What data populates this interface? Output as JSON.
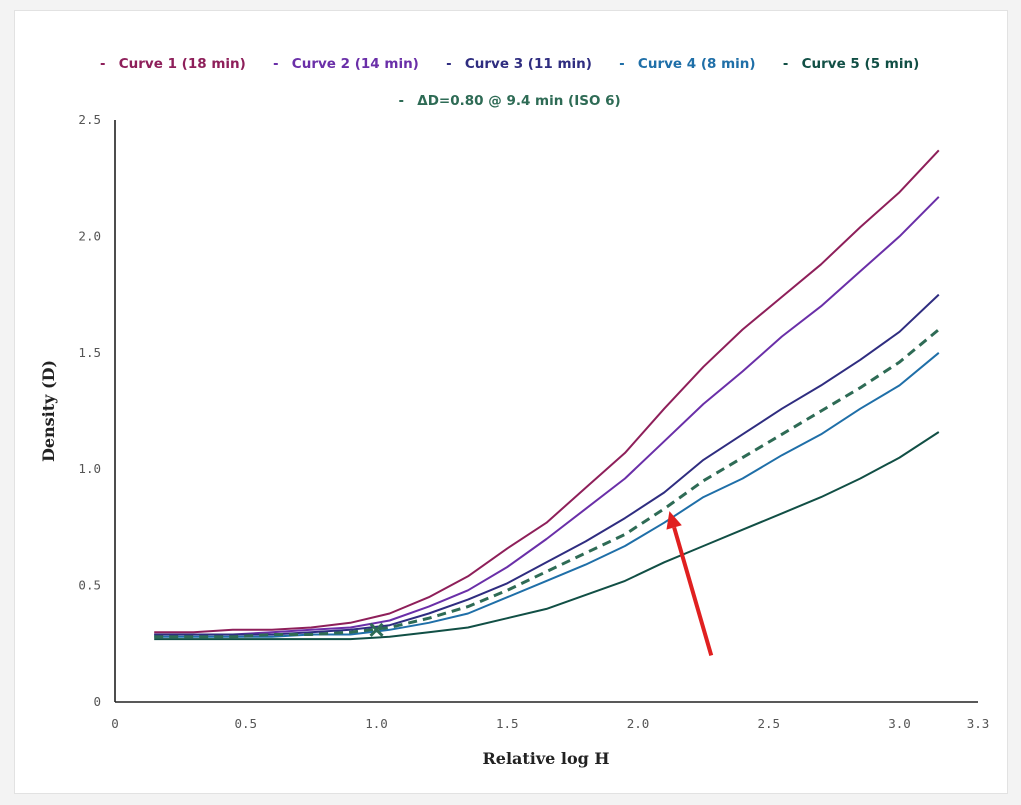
{
  "chart_data": {
    "type": "line",
    "title": "",
    "xlabel": "Relative log H",
    "ylabel": "Density (D)",
    "xlim": [
      0,
      3.3
    ],
    "ylim": [
      0,
      2.5
    ],
    "xticks": [
      "0",
      "0.5",
      "1.0",
      "1.5",
      "2.0",
      "2.5",
      "3.0",
      "3.3"
    ],
    "yticks": [
      "0",
      "0.5",
      "1.0",
      "1.5",
      "2.0",
      "2.5"
    ],
    "grid": false,
    "legend_position": "top",
    "series": [
      {
        "name": "Curve 1 (18 min)",
        "color": "#8e1f5a",
        "dash": false,
        "x": [
          0.15,
          0.3,
          0.45,
          0.6,
          0.75,
          0.9,
          1.05,
          1.2,
          1.35,
          1.5,
          1.65,
          1.8,
          1.95,
          2.1,
          2.25,
          2.4,
          2.55,
          2.7,
          2.85,
          3.0,
          3.15
        ],
        "y": [
          0.3,
          0.3,
          0.31,
          0.31,
          0.32,
          0.34,
          0.38,
          0.45,
          0.54,
          0.66,
          0.77,
          0.92,
          1.07,
          1.26,
          1.44,
          1.6,
          1.74,
          1.88,
          2.04,
          2.19,
          2.37
        ]
      },
      {
        "name": "Curve 2 (14 min)",
        "color": "#6a2fa8",
        "dash": false,
        "x": [
          0.15,
          0.3,
          0.45,
          0.6,
          0.75,
          0.9,
          1.05,
          1.2,
          1.35,
          1.5,
          1.65,
          1.8,
          1.95,
          2.1,
          2.25,
          2.4,
          2.55,
          2.7,
          2.85,
          3.0,
          3.15
        ],
        "y": [
          0.29,
          0.29,
          0.29,
          0.3,
          0.31,
          0.32,
          0.35,
          0.41,
          0.48,
          0.58,
          0.7,
          0.83,
          0.96,
          1.12,
          1.28,
          1.42,
          1.57,
          1.7,
          1.85,
          2.0,
          2.17
        ]
      },
      {
        "name": "Curve 3 (11 min)",
        "color": "#2f2d80",
        "dash": false,
        "x": [
          0.15,
          0.3,
          0.45,
          0.6,
          0.75,
          0.9,
          1.05,
          1.2,
          1.35,
          1.5,
          1.65,
          1.8,
          1.95,
          2.1,
          2.25,
          2.4,
          2.55,
          2.7,
          2.85,
          3.0,
          3.15
        ],
        "y": [
          0.29,
          0.29,
          0.29,
          0.29,
          0.3,
          0.31,
          0.33,
          0.38,
          0.44,
          0.51,
          0.6,
          0.69,
          0.79,
          0.9,
          1.04,
          1.15,
          1.26,
          1.36,
          1.47,
          1.59,
          1.75
        ]
      },
      {
        "name": "Curve 4 (8 min)",
        "color": "#1f6fa8",
        "dash": false,
        "x": [
          0.15,
          0.3,
          0.45,
          0.6,
          0.75,
          0.9,
          1.05,
          1.2,
          1.35,
          1.5,
          1.65,
          1.8,
          1.95,
          2.1,
          2.25,
          2.4,
          2.55,
          2.7,
          2.85,
          3.0,
          3.15
        ],
        "y": [
          0.28,
          0.28,
          0.28,
          0.28,
          0.29,
          0.29,
          0.31,
          0.34,
          0.38,
          0.45,
          0.52,
          0.59,
          0.67,
          0.77,
          0.88,
          0.96,
          1.06,
          1.15,
          1.26,
          1.36,
          1.5
        ]
      },
      {
        "name": "Curve 5 (5 min)",
        "color": "#114f45",
        "dash": false,
        "x": [
          0.15,
          0.3,
          0.45,
          0.6,
          0.75,
          0.9,
          1.05,
          1.2,
          1.35,
          1.5,
          1.65,
          1.8,
          1.95,
          2.1,
          2.25,
          2.4,
          2.55,
          2.7,
          2.85,
          3.0,
          3.15
        ],
        "y": [
          0.27,
          0.27,
          0.27,
          0.27,
          0.27,
          0.27,
          0.28,
          0.3,
          0.32,
          0.36,
          0.4,
          0.46,
          0.52,
          0.6,
          0.67,
          0.74,
          0.81,
          0.88,
          0.96,
          1.05,
          1.16
        ]
      },
      {
        "name": "ΔD=0.80 @ 9.4 min (ISO 6)",
        "color": "#2e6b55",
        "dash": true,
        "x": [
          0.15,
          0.3,
          0.45,
          0.6,
          0.75,
          0.9,
          1.05,
          1.2,
          1.35,
          1.5,
          1.65,
          1.8,
          1.95,
          2.1,
          2.25,
          2.4,
          2.55,
          2.7,
          2.85,
          3.0,
          3.15
        ],
        "y": [
          0.28,
          0.28,
          0.28,
          0.29,
          0.29,
          0.3,
          0.32,
          0.36,
          0.41,
          0.48,
          0.56,
          0.64,
          0.72,
          0.83,
          0.95,
          1.05,
          1.15,
          1.25,
          1.35,
          1.46,
          1.6
        ]
      }
    ],
    "annotations": [
      {
        "type": "x-marker",
        "x": 1.0,
        "y": 0.31,
        "color": "#2e6b55"
      },
      {
        "type": "arrow",
        "from": [
          2.28,
          0.2
        ],
        "to": [
          2.12,
          0.82
        ],
        "color": "#e02020"
      }
    ]
  }
}
